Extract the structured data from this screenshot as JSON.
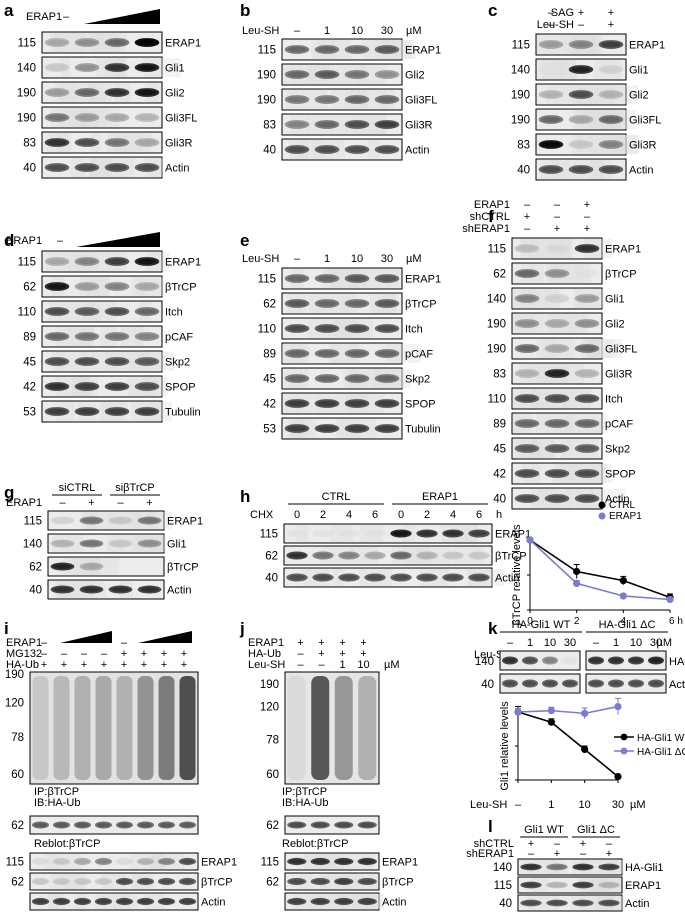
{
  "panels": {
    "a": {
      "letter": "a",
      "treatment_label": "ERAP1",
      "lanes": [
        "–",
        "",
        "",
        ""
      ],
      "rows": [
        {
          "mw": "115",
          "name": "ERAP1"
        },
        {
          "mw": "140",
          "name": "Gli1"
        },
        {
          "mw": "190",
          "name": "Gli2"
        },
        {
          "mw": "190",
          "name": "Gli3FL"
        },
        {
          "mw": "83",
          "name": "Gli3R"
        },
        {
          "mw": "40",
          "name": "Actin"
        }
      ]
    },
    "b": {
      "letter": "b",
      "treatment_label": "Leu-SH",
      "lanes": [
        "–",
        "1",
        "10",
        "30"
      ],
      "unit": "µM",
      "rows": [
        {
          "mw": "115",
          "name": "ERAP1"
        },
        {
          "mw": "190",
          "name": "Gli2"
        },
        {
          "mw": "190",
          "name": "Gli3FL"
        },
        {
          "mw": "83",
          "name": "Gli3R"
        },
        {
          "mw": "40",
          "name": "Actin"
        }
      ]
    },
    "c": {
      "letter": "c",
      "treatments": [
        {
          "label": "SAG",
          "marks": [
            "–",
            "+",
            "+"
          ]
        },
        {
          "label": "Leu-SH",
          "marks": [
            "–",
            "–",
            "+"
          ]
        }
      ],
      "rows": [
        {
          "mw": "115",
          "name": "ERAP1"
        },
        {
          "mw": "140",
          "name": "Gli1"
        },
        {
          "mw": "190",
          "name": "Gli2"
        },
        {
          "mw": "190",
          "name": "Gli3FL"
        },
        {
          "mw": "83",
          "name": "Gli3R"
        },
        {
          "mw": "40",
          "name": "Actin"
        }
      ]
    },
    "d": {
      "letter": "d",
      "treatment_label": "ERAP1",
      "lanes": [
        "–",
        "",
        "",
        ""
      ],
      "rows": [
        {
          "mw": "115",
          "name": "ERAP1"
        },
        {
          "mw": "62",
          "name": "βTrCP"
        },
        {
          "mw": "110",
          "name": "Itch"
        },
        {
          "mw": "89",
          "name": "pCAF"
        },
        {
          "mw": "45",
          "name": "Skp2"
        },
        {
          "mw": "42",
          "name": "SPOP"
        },
        {
          "mw": "53",
          "name": "Tubulin"
        }
      ]
    },
    "e": {
      "letter": "e",
      "treatment_label": "Leu-SH",
      "lanes": [
        "–",
        "1",
        "10",
        "30"
      ],
      "unit": "µM",
      "rows": [
        {
          "mw": "115",
          "name": "ERAP1"
        },
        {
          "mw": "62",
          "name": "βTrCP"
        },
        {
          "mw": "110",
          "name": "Itch"
        },
        {
          "mw": "89",
          "name": "pCAF"
        },
        {
          "mw": "45",
          "name": "Skp2"
        },
        {
          "mw": "42",
          "name": "SPOP"
        },
        {
          "mw": "53",
          "name": "Tubulin"
        }
      ]
    },
    "f": {
      "letter": "f",
      "treatments": [
        {
          "label": "ERAP1",
          "marks": [
            "–",
            "–",
            "+"
          ]
        },
        {
          "label": "shCTRL",
          "marks": [
            "+",
            "–",
            "–"
          ]
        },
        {
          "label": "shERAP1",
          "marks": [
            "–",
            "+",
            "+"
          ]
        }
      ],
      "rows": [
        {
          "mw": "115",
          "name": "ERAP1"
        },
        {
          "mw": "62",
          "name": "βTrCP"
        },
        {
          "mw": "140",
          "name": "Gli1"
        },
        {
          "mw": "190",
          "name": "Gli2"
        },
        {
          "mw": "190",
          "name": "Gli3FL"
        },
        {
          "mw": "83",
          "name": "Gli3R"
        },
        {
          "mw": "110",
          "name": "Itch"
        },
        {
          "mw": "89",
          "name": "pCAF"
        },
        {
          "mw": "45",
          "name": "Skp2"
        },
        {
          "mw": "42",
          "name": "SPOP"
        },
        {
          "mw": "40",
          "name": "Actin"
        }
      ]
    },
    "g": {
      "letter": "g",
      "groups": [
        "siCTRL",
        "siβTrCP"
      ],
      "treatment_label": "ERAP1",
      "marks": [
        "–",
        "+",
        "–",
        "+"
      ],
      "rows": [
        {
          "mw": "115",
          "name": "ERAP1"
        },
        {
          "mw": "140",
          "name": "Gli1"
        },
        {
          "mw": "62",
          "name": "βTrCP"
        },
        {
          "mw": "40",
          "name": "Actin"
        }
      ]
    },
    "h": {
      "letter": "h",
      "groups": [
        "CTRL",
        "ERAP1"
      ],
      "treatment_label": "CHX",
      "times": [
        "0",
        "2",
        "4",
        "6",
        "0",
        "2",
        "4",
        "6"
      ],
      "unit": "h",
      "rows": [
        {
          "mw": "115",
          "name": "ERAP1"
        },
        {
          "mw": "62",
          "name": "βTrCP"
        },
        {
          "mw": "40",
          "name": "Actin"
        }
      ]
    },
    "i": {
      "letter": "i",
      "treatments": [
        {
          "label": "ERAP1",
          "marks": [
            "–",
            "",
            "",
            "",
            "–",
            "",
            "",
            ""
          ]
        },
        {
          "label": "MG132",
          "marks": [
            "–",
            "–",
            "–",
            "–",
            "+",
            "+",
            "+",
            "+"
          ]
        },
        {
          "label": "HA-Ub",
          "marks": [
            "+",
            "+",
            "+",
            "+",
            "+",
            "+",
            "+",
            "+"
          ]
        }
      ],
      "ub_mw": [
        "190",
        "120",
        "78",
        "60"
      ],
      "ip_label": "IP:βTrCP",
      "ib_label": "IB:HA-Ub",
      "reblot_mw": "62",
      "reblot_label": "Reblot:βTrCP",
      "rows": [
        {
          "mw": "115",
          "name": "ERAP1"
        },
        {
          "mw": "62",
          "name": "βTrCP"
        },
        {
          "mw": "",
          "name": "Actin"
        }
      ]
    },
    "j": {
      "letter": "j",
      "treatments": [
        {
          "label": "ERAP1",
          "marks": [
            "+",
            "+",
            "+",
            "+"
          ]
        },
        {
          "label": "HA-Ub",
          "marks": [
            "–",
            "+",
            "+",
            "+"
          ]
        },
        {
          "label": "Leu-SH",
          "marks": [
            "–",
            "–",
            "1",
            "10"
          ]
        }
      ],
      "unit": "µM",
      "ub_mw": [
        "190",
        "120",
        "78",
        "60"
      ],
      "ip_label": "IP:βTrCP",
      "ib_label": "IB:HA-Ub",
      "reblot_mw": "62",
      "reblot_label": "Reblot:βTrCP",
      "rows": [
        {
          "mw": "115",
          "name": "ERAP1"
        },
        {
          "mw": "62",
          "name": "βTrCP"
        },
        {
          "mw": "",
          "name": "Actin"
        }
      ]
    },
    "k": {
      "letter": "k",
      "groups": [
        "HA-Gli1 WT",
        "HA-Gli1 ΔC"
      ],
      "treatment_label": "Leu-SH",
      "lanes": [
        "–",
        "1",
        "10",
        "30",
        "–",
        "1",
        "10",
        "30"
      ],
      "unit": "µM",
      "rows": [
        {
          "mw": "140",
          "name": "HA-Gli1"
        },
        {
          "mw": "40",
          "name": "Actin"
        }
      ]
    },
    "l": {
      "letter": "l",
      "groups": [
        "Gli1 WT",
        "Gli1 ΔC"
      ],
      "treatments": [
        {
          "label": "shCTRL",
          "marks": [
            "+",
            "–",
            "+",
            "–"
          ]
        },
        {
          "label": "shERAP1",
          "marks": [
            "–",
            "+",
            "–",
            "+"
          ]
        }
      ],
      "rows": [
        {
          "mw": "140",
          "name": "HA-Gli1"
        },
        {
          "mw": "115",
          "name": "ERAP1"
        },
        {
          "mw": "40",
          "name": "Actin"
        }
      ]
    }
  },
  "chart_data": [
    {
      "type": "line",
      "panel": "h",
      "x": [
        0,
        2,
        4,
        6
      ],
      "xticks": [
        "0",
        "2",
        "4",
        "6 h"
      ],
      "ylabel": "βTrCP relative levels",
      "ylim": [
        0,
        1
      ],
      "series": [
        {
          "name": "CTRL",
          "color": "#000000",
          "values": [
            1.0,
            0.55,
            0.42,
            0.18
          ],
          "errors": [
            0,
            0.1,
            0.06,
            0.05
          ]
        },
        {
          "name": "ERAP1",
          "color": "#7b7bd0",
          "values": [
            1.0,
            0.38,
            0.2,
            0.15
          ],
          "errors": [
            0,
            0.04,
            0.03,
            0.03
          ]
        }
      ],
      "legend": "top-right"
    },
    {
      "type": "line",
      "panel": "k",
      "categories": [
        "–",
        "1",
        "10",
        "30"
      ],
      "xlabel": "Leu-SH",
      "xunit": "µM",
      "ylabel": "Gli1 relative levels",
      "ylim": [
        0,
        1
      ],
      "series": [
        {
          "name": "HA-Gli1 WT",
          "color": "#000000",
          "values": [
            1.0,
            0.85,
            0.45,
            0.05
          ],
          "errors": [
            0.08,
            0.05,
            0.05,
            0
          ]
        },
        {
          "name": "HA-Gli1 ΔC",
          "color": "#7b7bd0",
          "values": [
            1.0,
            1.02,
            0.98,
            1.08
          ],
          "errors": [
            0.05,
            0.05,
            0.08,
            0.12
          ]
        }
      ],
      "legend": "right"
    }
  ]
}
